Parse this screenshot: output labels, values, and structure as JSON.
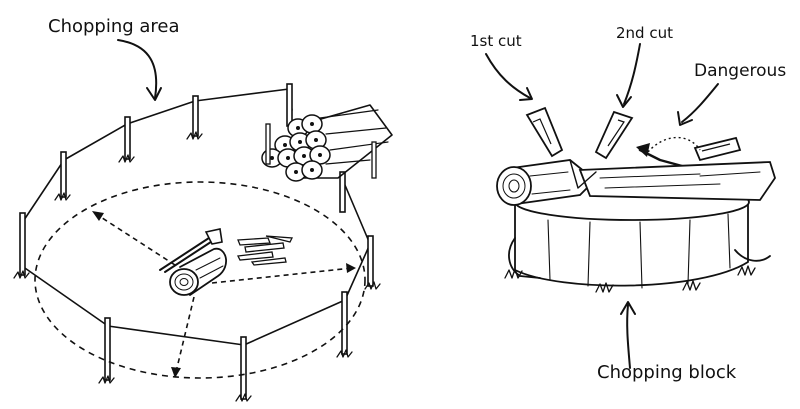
{
  "left_panel": {
    "label": "Chopping area"
  },
  "right_panel": {
    "labels": {
      "first_cut": "1st cut",
      "second_cut": "2nd cut",
      "dangerous": "Dangerous",
      "chopping_block": "Chopping block"
    }
  },
  "colors": {
    "ink": "#111111",
    "background": "#ffffff"
  }
}
